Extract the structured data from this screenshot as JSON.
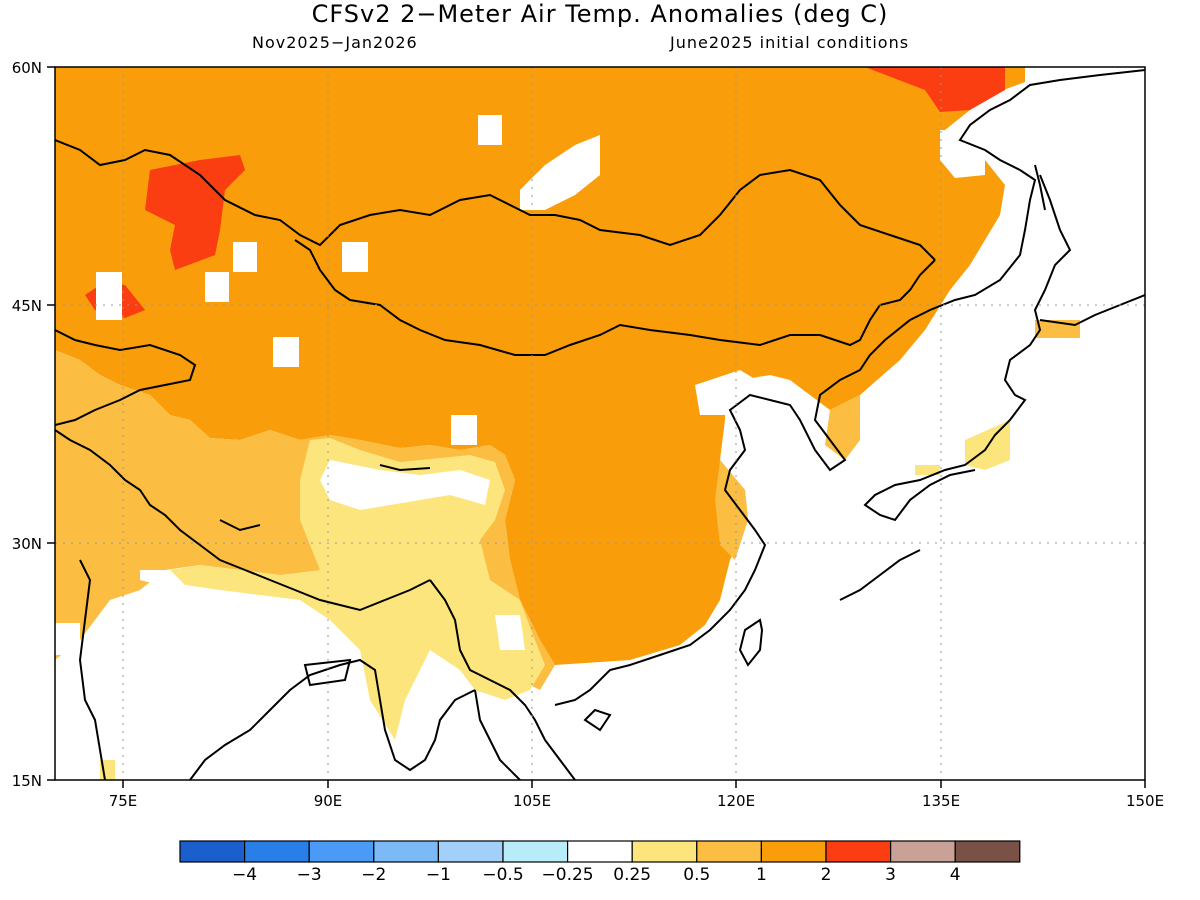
{
  "title": "CFSv2 2−Meter Air Temp. Anomalies (deg C)",
  "subtitle_left": "Nov2025−Jan2026",
  "subtitle_right": "June2025 initial conditions",
  "lat_labels": [
    "60N",
    "45N",
    "30N",
    "15N"
  ],
  "lon_labels": [
    "75E",
    "90E",
    "105E",
    "120E",
    "135E",
    "150E"
  ],
  "colorbar": {
    "colors": [
      "#1a5fcc",
      "#2a7ee8",
      "#4a9bf5",
      "#7cb9f7",
      "#a3d0fa",
      "#b8ecf8",
      "#ffffff",
      "#fde57e",
      "#fbbd42",
      "#f99d0a",
      "#fb3d12",
      "#c9a197",
      "#7a5146"
    ],
    "labels": [
      "−4",
      "−3",
      "−2",
      "−1",
      "−0.5",
      "−0.25",
      "0.25",
      "0.5",
      "1",
      "2",
      "3",
      "4"
    ]
  }
}
